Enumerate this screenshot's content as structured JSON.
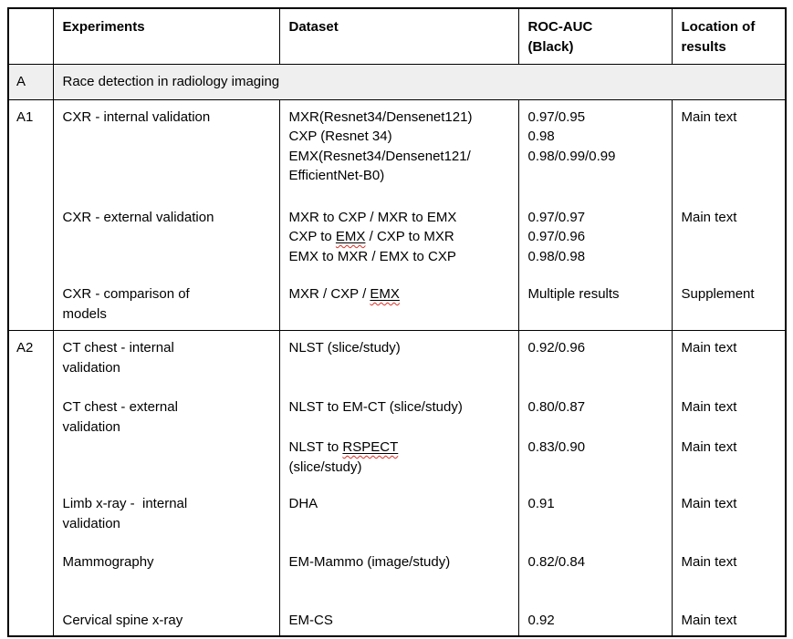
{
  "header": {
    "experiments": "Experiments",
    "dataset": "Dataset",
    "roc_auc": "ROC-AUC\n(Black)",
    "location": "Location of\nresults"
  },
  "section_a": {
    "label": "A",
    "title": "Race detection in radiology imaging"
  },
  "sections": [
    {
      "label": "A1",
      "entries": [
        {
          "experiment_lines": [
            "CXR - internal validation"
          ],
          "dataset_lines": [
            "MXR(Resnet34/Densenet121)",
            "CXP (Resnet 34)",
            "EMX(Resnet34/Densenet121/",
            "EfficientNet-B0)"
          ],
          "roc_lines": [
            "0.97/0.95",
            "0.98",
            "0.98/0.99/0.99"
          ],
          "location": "Main text"
        },
        {
          "experiment_lines": [
            "CXR - external validation"
          ],
          "dataset_lines": [
            "MXR to CXP / MXR to EMX",
            {
              "pre": "CXP to ",
              "word": "EMX",
              "post": " / CXP to MXR"
            },
            "EMX to MXR / EMX to CXP"
          ],
          "roc_lines": [
            "0.97/0.97",
            "0.97/0.96",
            "0.98/0.98"
          ],
          "location": "Main text"
        },
        {
          "experiment_lines": [
            "CXR - comparison of",
            "models"
          ],
          "dataset_lines": [
            {
              "pre": "MXR / CXP / ",
              "word": "EMX",
              "post": ""
            }
          ],
          "roc_lines": [
            "Multiple results"
          ],
          "location": "Supplement"
        }
      ]
    },
    {
      "label": "A2",
      "entries": [
        {
          "experiment_lines": [
            "CT chest - internal",
            "validation"
          ],
          "dataset_lines": [
            "NLST (slice/study)"
          ],
          "roc_lines": [
            "0.92/0.96"
          ],
          "location": "Main text"
        },
        {
          "experiment_lines": [
            "CT chest - external",
            "validation"
          ],
          "dataset_lines": [
            "NLST to EM-CT (slice/study)"
          ],
          "roc_lines": [
            "0.80/0.87"
          ],
          "location": "Main text"
        },
        {
          "experiment_lines": [],
          "dataset_lines": [
            {
              "pre": "NLST to ",
              "word": "RSPECT",
              "post": ""
            },
            "(slice/study)"
          ],
          "roc_lines": [
            "0.83/0.90"
          ],
          "location": "Main text"
        },
        {
          "experiment_lines": [
            "Limb x-ray -  internal",
            "validation"
          ],
          "dataset_lines": [
            "DHA"
          ],
          "roc_lines": [
            "0.91"
          ],
          "location": "Main text"
        },
        {
          "experiment_lines": [
            "Mammography"
          ],
          "dataset_lines": [
            "EM-Mammo (image/study)"
          ],
          "roc_lines": [
            "0.82/0.84"
          ],
          "location": "Main text"
        },
        {
          "experiment_lines": [
            "Cervical spine x-ray"
          ],
          "dataset_lines": [
            "EM-CS"
          ],
          "roc_lines": [
            "0.92"
          ],
          "location": "Main text"
        }
      ]
    }
  ],
  "colors": {
    "section_title_bg": "#efefef",
    "border": "#000000",
    "text": "#000000",
    "squiggle": "#d93025"
  }
}
